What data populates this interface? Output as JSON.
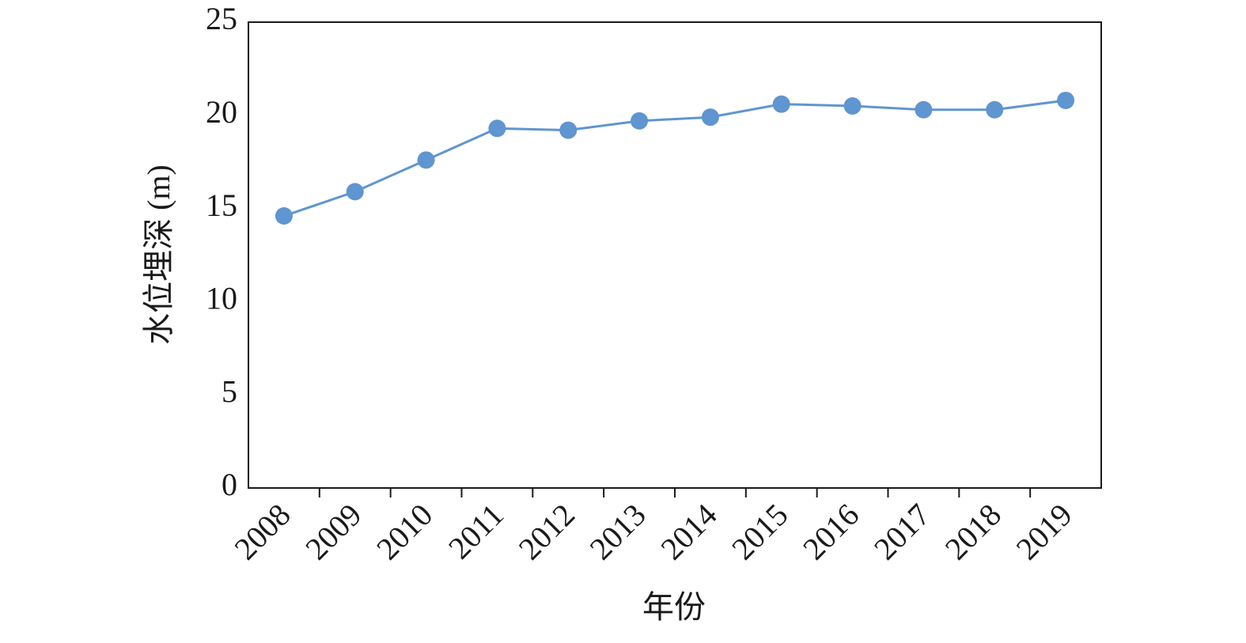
{
  "chart_data": {
    "type": "line",
    "categories": [
      "2008",
      "2009",
      "2010",
      "2011",
      "2012",
      "2013",
      "2014",
      "2015",
      "2016",
      "2017",
      "2018",
      "2019"
    ],
    "values": [
      14.6,
      15.9,
      17.6,
      19.3,
      19.2,
      19.7,
      19.9,
      20.6,
      20.5,
      20.3,
      20.3,
      20.8
    ],
    "color": "#5f95d0",
    "ylim": [
      0,
      25
    ],
    "yticks": [
      0,
      5,
      10,
      15,
      20,
      25
    ],
    "x_label": "年份",
    "y_label": "水位埋深 (m)"
  }
}
